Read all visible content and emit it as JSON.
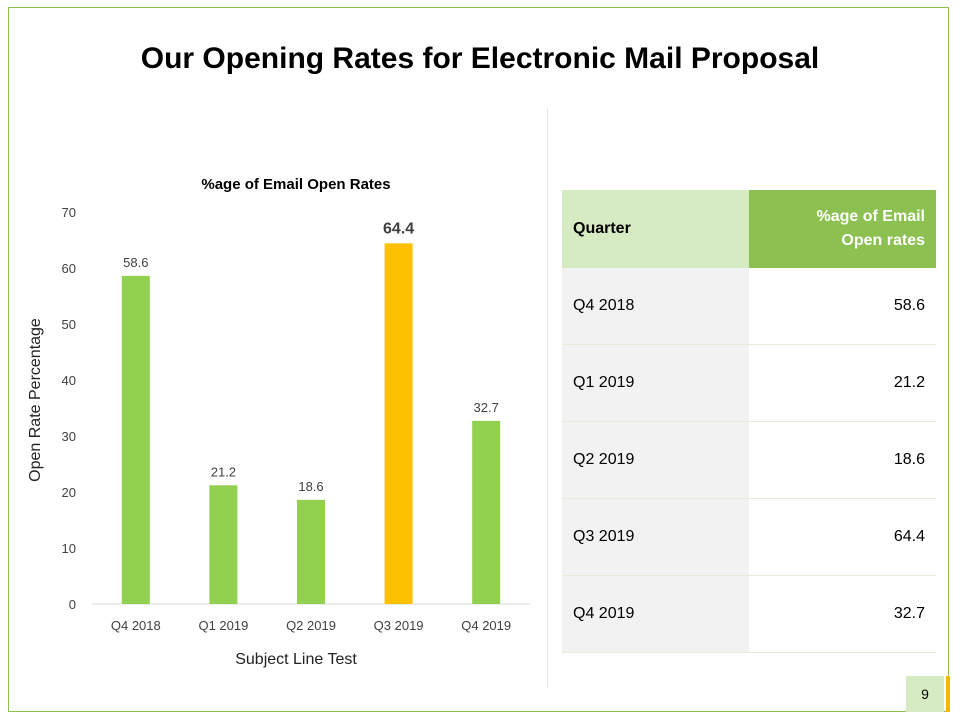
{
  "slide": {
    "title": "Our Opening Rates for Electronic Mail Proposal",
    "page_number": "9"
  },
  "colors": {
    "green": "#92d050",
    "highlight": "#ffc000",
    "header_green": "#8cc152",
    "light_green": "#d6ebc2"
  },
  "chart_data": {
    "type": "bar",
    "title": "%age of Email Open Rates",
    "xlabel": "Subject Line Test",
    "ylabel": "Open Rate Percentage",
    "categories": [
      "Q4 2018",
      "Q1 2019",
      "Q2 2019",
      "Q3 2019",
      "Q4 2019"
    ],
    "values": [
      58.6,
      21.2,
      18.6,
      64.4,
      32.7
    ],
    "labels": [
      "58.6",
      "21.2",
      "18.6",
      "64.4",
      "32.7"
    ],
    "highlight_index": 3,
    "ylim": [
      0,
      70
    ],
    "yticks": [
      0,
      10,
      20,
      30,
      40,
      50,
      60,
      70
    ],
    "grid": false
  },
  "table": {
    "header_quarter": "Quarter",
    "header_value_line1": "%age of Email",
    "header_value_line2": "Open rates",
    "rows": [
      {
        "quarter": "Q4 2018",
        "value": "58.6"
      },
      {
        "quarter": "Q1 2019",
        "value": "21.2"
      },
      {
        "quarter": "Q2 2019",
        "value": "18.6"
      },
      {
        "quarter": "Q3 2019",
        "value": "64.4"
      },
      {
        "quarter": "Q4 2019",
        "value": "32.7"
      }
    ]
  }
}
